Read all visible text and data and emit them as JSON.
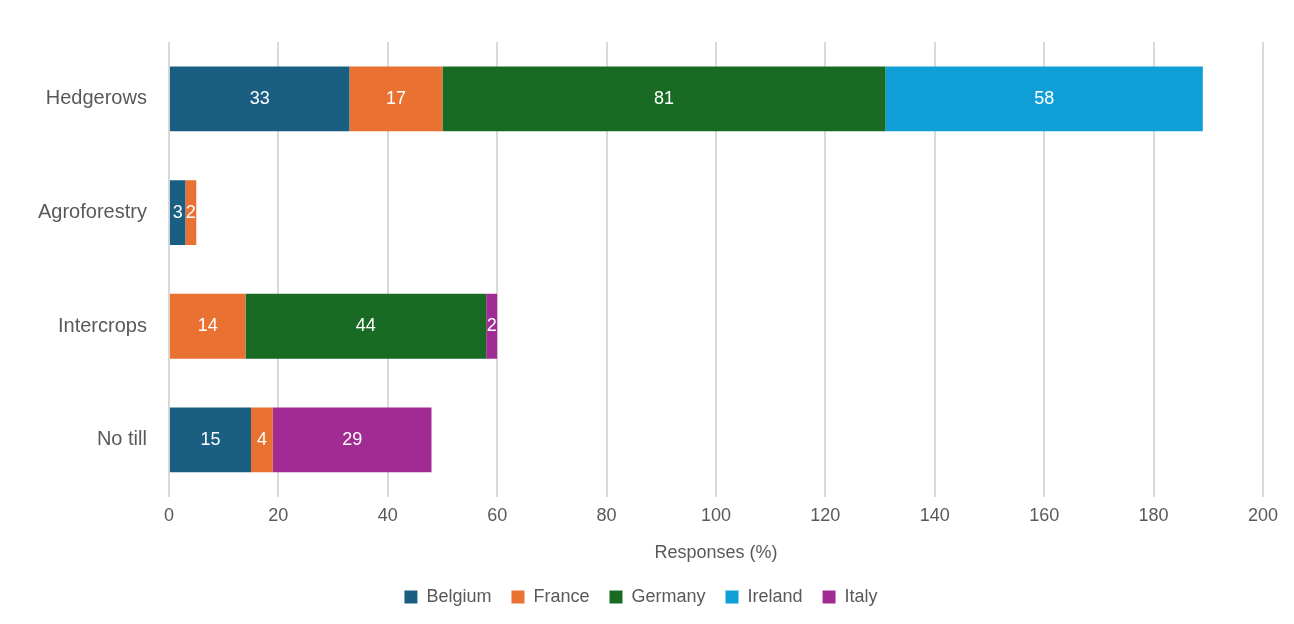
{
  "chart_data": {
    "type": "bar",
    "orientation": "horizontal",
    "stacked": true,
    "categories": [
      "Hedgerows",
      "Agroforestry",
      "Intercrops",
      "No till"
    ],
    "series": [
      {
        "name": "Belgium",
        "color": "#1a5e82",
        "values": [
          33,
          3,
          null,
          15
        ]
      },
      {
        "name": "France",
        "color": "#e97132",
        "values": [
          17,
          2,
          14,
          4
        ]
      },
      {
        "name": "Germany",
        "color": "#196b24",
        "values": [
          81,
          null,
          44,
          null
        ]
      },
      {
        "name": "Ireland",
        "color": "#0f9ed5",
        "values": [
          58,
          null,
          null,
          null
        ]
      },
      {
        "name": "Italy",
        "color": "#a02b93",
        "values": [
          null,
          null,
          2,
          29
        ]
      }
    ],
    "xlabel": "Responses (%)",
    "xlim": [
      0,
      200
    ],
    "xticks": [
      0,
      20,
      40,
      60,
      80,
      100,
      120,
      140,
      160,
      180,
      200
    ],
    "grid": "x",
    "legend": "bottom",
    "data_labels": true
  }
}
